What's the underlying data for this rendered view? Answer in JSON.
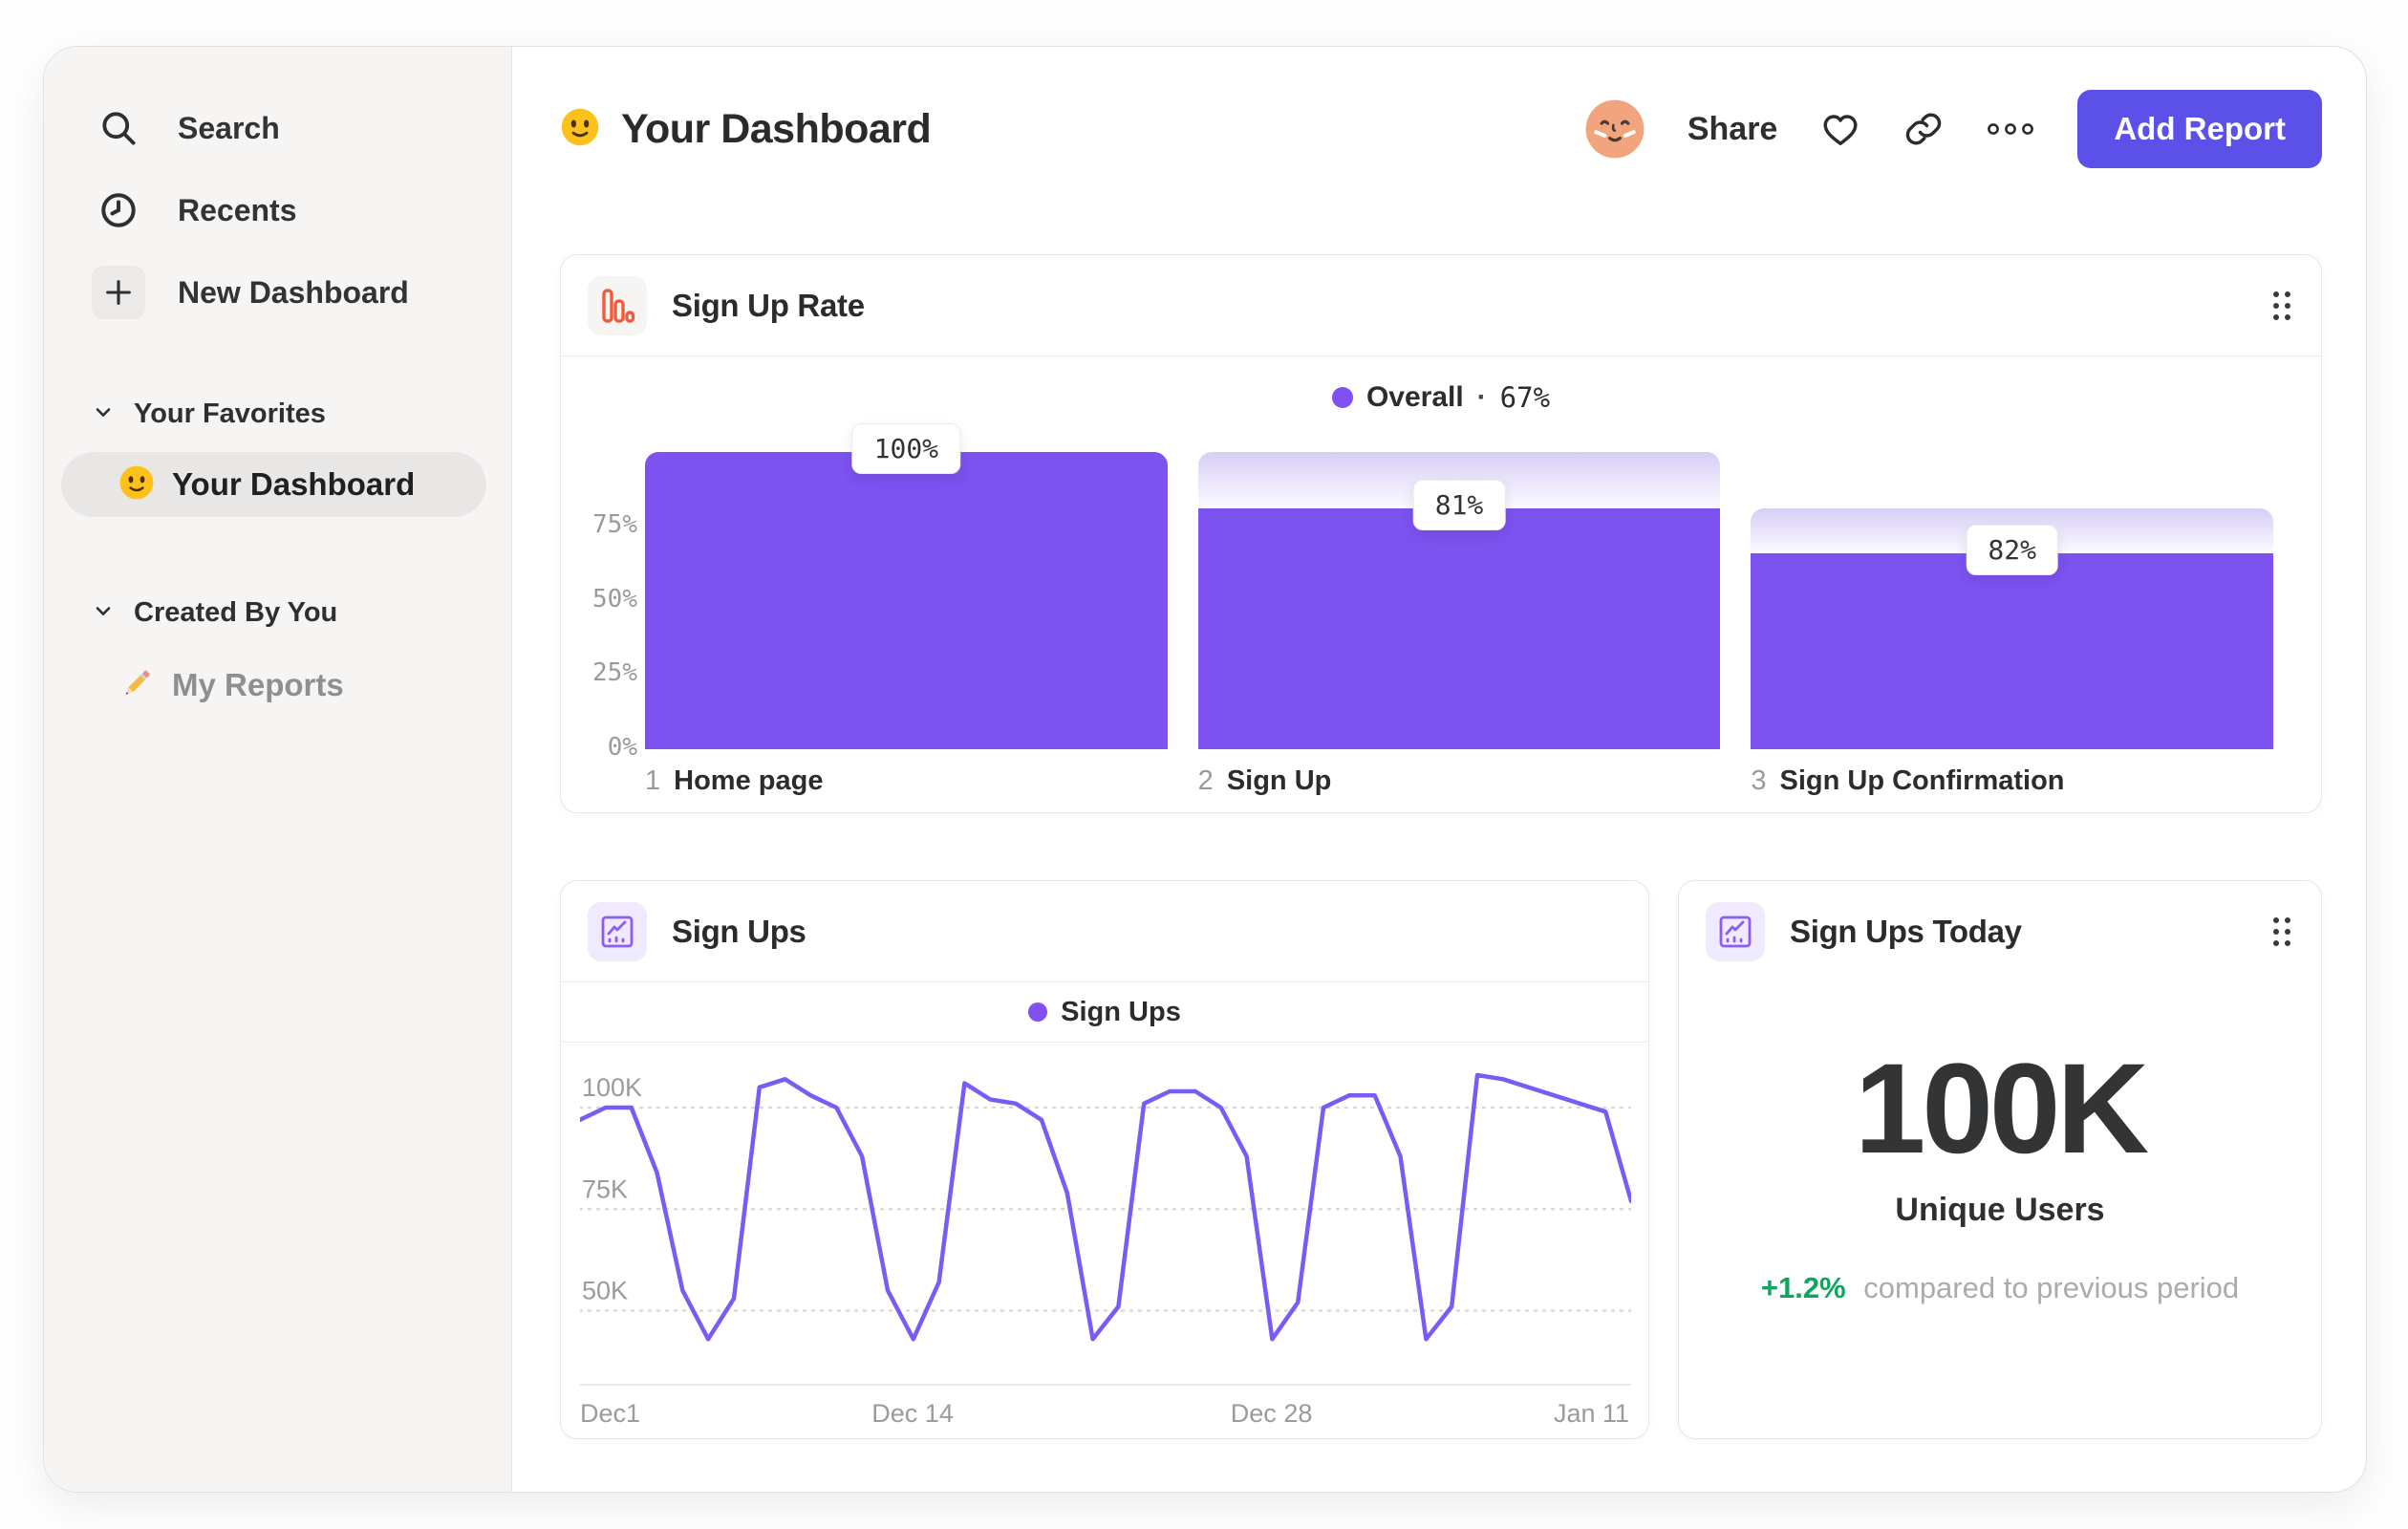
{
  "sidebar": {
    "items": [
      {
        "label": "Search",
        "icon": "search-icon"
      },
      {
        "label": "Recents",
        "icon": "clock-icon"
      },
      {
        "label": "New Dashboard",
        "icon": "plus-icon"
      }
    ],
    "favorites_header": "Your Favorites",
    "favorite_item": {
      "label": "Your Dashboard",
      "icon": "smiley-emoji"
    },
    "created_header": "Created By You",
    "created_item": {
      "label": "My Reports",
      "icon": "pencil-emoji"
    }
  },
  "header": {
    "title": "Your Dashboard",
    "title_icon": "smiley-emoji",
    "share_label": "Share",
    "add_report_label": "Add Report",
    "icons": [
      "avatar",
      "heart-icon",
      "link-icon",
      "ellipsis-icon"
    ]
  },
  "colors": {
    "accent_purple": "#7c52f0",
    "line_purple": "#7b5bf5",
    "button_purple": "#5b50e7",
    "icon_orange": "#ee5d3b",
    "icon_purple": "#8b5cf6",
    "green": "#0ea55f",
    "sidebar_bg": "#f6f5f4"
  },
  "cards": {
    "funnel": {
      "title": "Sign Up Rate"
    },
    "line": {
      "title": "Sign Ups"
    },
    "stat": {
      "title": "Sign Ups Today",
      "value": "100K",
      "label": "Unique Users",
      "delta": "+1.2%",
      "delta_note": "compared to previous period"
    }
  },
  "chart_data": [
    {
      "type": "bar",
      "subtype": "funnel",
      "title": "Sign Up Rate",
      "legend": {
        "name": "Overall",
        "sep": "·",
        "value": "67%"
      },
      "ylim": [
        0,
        100
      ],
      "y_ticks": [
        {
          "label": "0%",
          "pct": 0
        },
        {
          "label": "25%",
          "pct": 25
        },
        {
          "label": "50%",
          "pct": 50
        },
        {
          "label": "75%",
          "pct": 75
        }
      ],
      "categories": [
        "Home page",
        "Sign Up",
        "Sign Up Confirmation"
      ],
      "values": [
        100,
        81,
        82
      ],
      "steps": [
        {
          "num": "1",
          "label": "Home page",
          "value_label": "100%",
          "solid_pct": 100,
          "cap_top_pct": 100
        },
        {
          "num": "2",
          "label": "Sign Up",
          "value_label": "81%",
          "solid_pct": 81,
          "cap_top_pct": 100
        },
        {
          "num": "3",
          "label": "Sign Up Confirmation",
          "value_label": "82%",
          "solid_pct": 66,
          "cap_top_pct": 81
        }
      ]
    },
    {
      "type": "line",
      "title": "Sign Ups",
      "legend": {
        "name": "Sign Ups"
      },
      "ylabel": "",
      "xlabel": "",
      "k_top": 116,
      "k_bottom": 32,
      "y_ticks": [
        {
          "label": "100K",
          "k": 100
        },
        {
          "label": "75K",
          "k": 75
        },
        {
          "label": "50K",
          "k": 50
        }
      ],
      "x_ticks": [
        {
          "label": "Dec1",
          "f": 0.0,
          "align": "left"
        },
        {
          "label": "Dec 14",
          "f": 0.317,
          "align": "center"
        },
        {
          "label": "Dec 28",
          "f": 0.659,
          "align": "center"
        },
        {
          "label": "Jan 11",
          "f": 1.0,
          "align": "right"
        }
      ],
      "values": [
        97,
        100,
        100,
        84,
        55,
        43,
        53,
        105,
        107,
        103,
        100,
        88,
        55,
        43,
        57,
        106,
        102,
        101,
        97,
        79,
        43,
        51,
        101,
        104,
        104,
        100,
        88,
        43,
        52,
        100,
        103,
        103,
        88,
        43,
        51,
        108,
        107,
        105,
        103,
        101,
        99,
        77
      ]
    }
  ]
}
